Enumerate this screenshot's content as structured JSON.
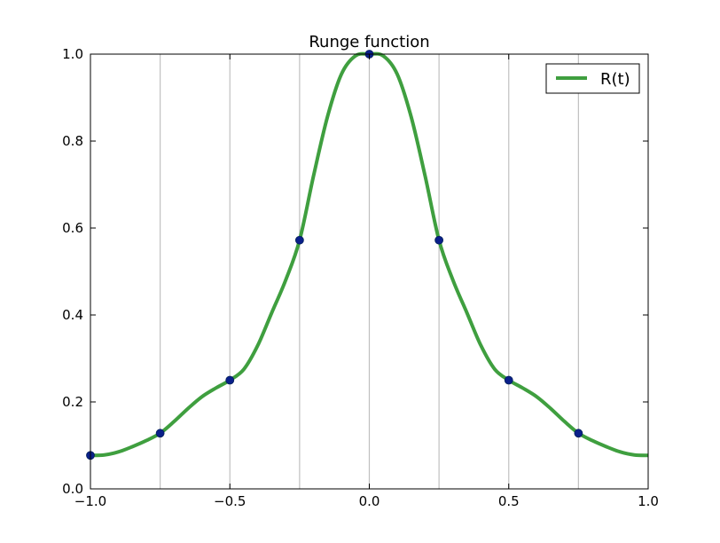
{
  "chart_data": {
    "type": "line",
    "title": "Runge function",
    "xlabel": "",
    "ylabel": "",
    "xlim": [
      -1.0,
      1.0
    ],
    "ylim": [
      0.0,
      1.0
    ],
    "x_ticks": [
      -1.0,
      -0.5,
      0.0,
      0.5,
      1.0
    ],
    "x_tick_labels": [
      "−1.0",
      "−0.5",
      "0.0",
      "0.5",
      "1.0"
    ],
    "y_ticks": [
      0.0,
      0.2,
      0.4,
      0.6,
      0.8,
      1.0
    ],
    "y_tick_labels": [
      "0.0",
      "0.2",
      "0.4",
      "0.6",
      "0.8",
      "1.0"
    ],
    "vertical_gridlines_at": [
      -0.75,
      -0.5,
      -0.25,
      0.0,
      0.25,
      0.5,
      0.75
    ],
    "grid": "vertical lines at sample nodes",
    "legend_position": "top-right",
    "series": [
      {
        "name": "R(t)",
        "color": "#3f9f3f",
        "style": "line",
        "x": [
          -1.0,
          -0.95,
          -0.9,
          -0.85,
          -0.8,
          -0.75,
          -0.7,
          -0.65,
          -0.6,
          -0.55,
          -0.5,
          -0.45,
          -0.4,
          -0.35,
          -0.3,
          -0.25,
          -0.2,
          -0.15,
          -0.1,
          -0.05,
          0.0,
          0.05,
          0.1,
          0.15,
          0.2,
          0.25,
          0.3,
          0.35,
          0.4,
          0.45,
          0.5,
          0.55,
          0.6,
          0.65,
          0.7,
          0.75,
          0.8,
          0.85,
          0.9,
          0.95,
          1.0
        ],
        "y": [
          0.077,
          0.078,
          0.085,
          0.097,
          0.111,
          0.128,
          0.155,
          0.185,
          0.212,
          0.232,
          0.25,
          0.275,
          0.33,
          0.405,
          0.48,
          0.572,
          0.72,
          0.856,
          0.954,
          0.996,
          1.0,
          0.996,
          0.954,
          0.856,
          0.72,
          0.572,
          0.48,
          0.405,
          0.33,
          0.275,
          0.25,
          0.232,
          0.212,
          0.185,
          0.155,
          0.128,
          0.111,
          0.097,
          0.085,
          0.078,
          0.077
        ]
      },
      {
        "name": "",
        "color": "#0a1f8a",
        "style": "points",
        "x": [
          -1.0,
          -0.75,
          -0.5,
          -0.25,
          0.0,
          0.25,
          0.5,
          0.75
        ],
        "y": [
          0.077,
          0.128,
          0.25,
          0.572,
          1.0,
          0.572,
          0.25,
          0.128
        ]
      }
    ]
  }
}
